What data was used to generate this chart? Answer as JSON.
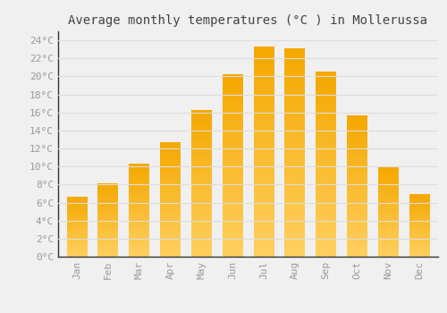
{
  "title": "Average monthly temperatures (°C ) in Mollerussa",
  "months": [
    "Jan",
    "Feb",
    "Mar",
    "Apr",
    "May",
    "Jun",
    "Jul",
    "Aug",
    "Sep",
    "Oct",
    "Nov",
    "Dec"
  ],
  "values": [
    6.6,
    8.1,
    10.3,
    12.6,
    16.2,
    20.2,
    23.3,
    23.1,
    20.5,
    15.6,
    9.9,
    6.9
  ],
  "bar_color_bottom": "#F5A800",
  "bar_color_top": "#FFD060",
  "background_color": "#F0F0F0",
  "grid_color": "#DDDDDD",
  "text_color": "#999999",
  "ylim": [
    0,
    25
  ],
  "ytick_step": 2,
  "title_fontsize": 10,
  "tick_fontsize": 8,
  "font_family": "monospace",
  "bar_width": 0.65
}
